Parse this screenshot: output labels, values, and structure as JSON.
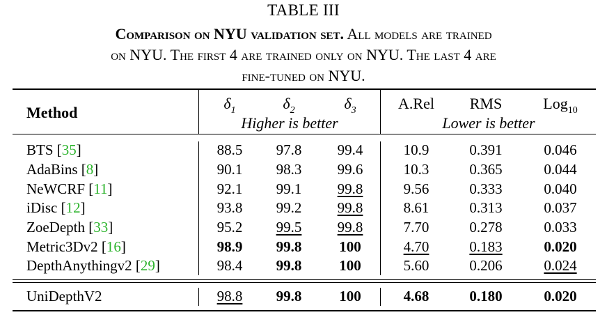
{
  "table_label": "TABLE III",
  "caption": {
    "bold_part": "Comparison on NYU validation set.",
    "line1_rest": " All models are trained",
    "line2": "on NYU. The first 4 are trained only on NYU. The last 4 are",
    "line3": "fine-tuned on NYU."
  },
  "header": {
    "method": "Method",
    "delta_symbol": "δ",
    "d1_sub": "1",
    "d2_sub": "2",
    "d3_sub": "3",
    "arel": "A.Rel",
    "rms": "RMS",
    "log_base": "Log",
    "log_sub": "10",
    "higher": "Higher is better",
    "lower": "Lower is better"
  },
  "rows": [
    {
      "method": "BTS",
      "ref": "35",
      "d1": "88.5",
      "d2": "97.8",
      "d3": "99.4",
      "arel": "10.9",
      "rms": "0.391",
      "log10": "0.046"
    },
    {
      "method": "AdaBins",
      "ref": "8",
      "d1": "90.1",
      "d2": "98.3",
      "d3": "99.6",
      "arel": "10.3",
      "rms": "0.365",
      "log10": "0.044"
    },
    {
      "method": "NeWCRF",
      "ref": "11",
      "d1": "92.1",
      "d2": "99.1",
      "d3": "99.8",
      "arel": "9.56",
      "rms": "0.333",
      "log10": "0.040"
    },
    {
      "method": "iDisc",
      "ref": "12",
      "d1": "93.8",
      "d2": "99.2",
      "d3": "99.8",
      "arel": "8.61",
      "rms": "0.313",
      "log10": "0.037"
    },
    {
      "method": "ZoeDepth",
      "ref": "33",
      "d1": "95.2",
      "d2": "99.5",
      "d3": "99.8",
      "arel": "7.70",
      "rms": "0.278",
      "log10": "0.033"
    },
    {
      "method": "Metric3Dv2",
      "ref": "16",
      "d1": "98.9",
      "d2": "99.8",
      "d3": "100",
      "arel": "4.70",
      "rms": "0.183",
      "log10": "0.020"
    },
    {
      "method": "DepthAnythingv2",
      "ref": "29",
      "d1": "98.4",
      "d2": "99.8",
      "d3": "100",
      "arel": "5.60",
      "rms": "0.206",
      "log10": "0.024"
    }
  ],
  "final_row": {
    "method": "UniDepthV2",
    "d1": "98.8",
    "d2": "99.8",
    "d3": "100",
    "arel": "4.68",
    "rms": "0.180",
    "log10": "0.020"
  }
}
